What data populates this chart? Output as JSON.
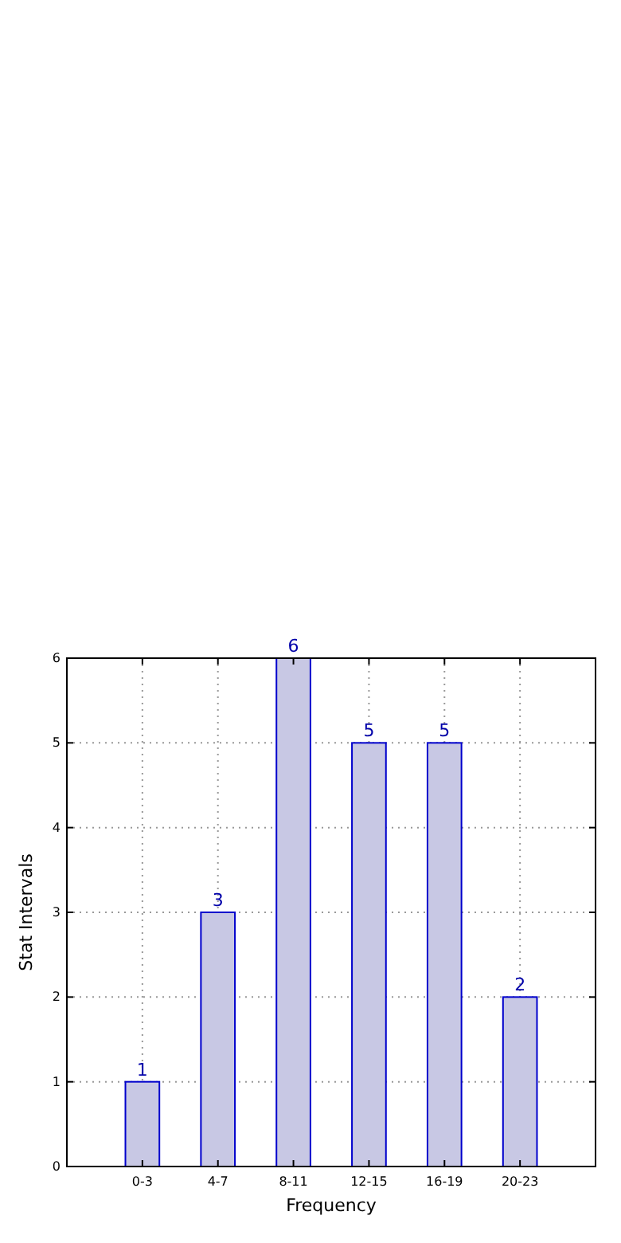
{
  "chart_data": {
    "type": "bar",
    "xlabel": "Frequency",
    "ylabel": "Stat Intervals",
    "categories": [
      "0-3",
      "4-7",
      "8-11",
      "12-15",
      "16-19",
      "20-23"
    ],
    "series": [
      {
        "color": "#c8c8e4",
        "values": [
          1,
          3,
          6,
          5,
          5,
          2
        ]
      }
    ],
    "ylim": [
      0,
      6
    ],
    "yticks": [
      0,
      1,
      2,
      3,
      4,
      5,
      6
    ],
    "grid": true,
    "data_labels": true
  }
}
